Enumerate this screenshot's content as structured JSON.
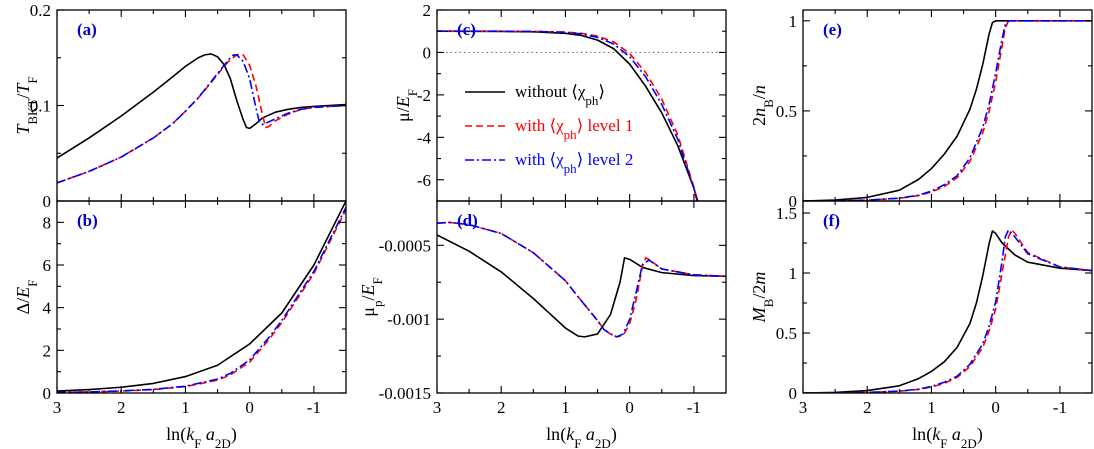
{
  "colors": {
    "black": "#000000",
    "red": "#ff0000",
    "blue": "#0000ff",
    "label": "#0000cc",
    "reference": "#777777"
  },
  "legend": [
    {
      "text": "without ⟨χ_ph⟩",
      "color": "#000000",
      "dash": "solid"
    },
    {
      "text": "with ⟨χ_ph⟩ level 1",
      "color": "#ff0000",
      "dash": "dashed"
    },
    {
      "text": "with ⟨χ_ph⟩ level 2",
      "color": "#0000ff",
      "dash": "dashdot"
    }
  ],
  "chart_data": [
    {
      "id": "a",
      "label": "(a)",
      "type": "line",
      "title": "",
      "xlabel": "ln(k_F a_2D)",
      "ylabel": "T_BKT/T_F",
      "xlim": [
        3,
        -1.5
      ],
      "ylim": [
        0,
        0.2
      ],
      "yticks": [
        0,
        0.1,
        0.2
      ],
      "yticklabels": [
        "0",
        "0.1",
        "0.2"
      ],
      "show_xlabel": false,
      "show_xticklabels": false,
      "series": [
        {
          "name": "without ⟨χ_ph⟩",
          "color": "#000000",
          "dash": "solid",
          "x": [
            3,
            2.5,
            2,
            1.5,
            1.2,
            1,
            0.8,
            0.7,
            0.6,
            0.5,
            0.4,
            0.3,
            0.2,
            0.1,
            0.05,
            0,
            -0.1,
            -0.2,
            -0.4,
            -0.6,
            -0.8,
            -1,
            -1.5
          ],
          "y": [
            0.045,
            0.066,
            0.089,
            0.114,
            0.13,
            0.141,
            0.15,
            0.153,
            0.154,
            0.151,
            0.143,
            0.128,
            0.105,
            0.085,
            0.077,
            0.076,
            0.081,
            0.087,
            0.093,
            0.096,
            0.098,
            0.099,
            0.101
          ]
        },
        {
          "name": "with ⟨χ_ph⟩ level 1",
          "color": "#ff0000",
          "dash": "dashed",
          "x": [
            3,
            2.5,
            2,
            1.5,
            1.2,
            1,
            0.8,
            0.6,
            0.4,
            0.3,
            0.2,
            0.15,
            0.1,
            0,
            -0.1,
            -0.2,
            -0.25,
            -0.3,
            -0.4,
            -0.6,
            -0.8,
            -1,
            -1.5
          ],
          "y": [
            0.019,
            0.031,
            0.046,
            0.066,
            0.081,
            0.094,
            0.108,
            0.124,
            0.141,
            0.148,
            0.153,
            0.154,
            0.153,
            0.142,
            0.12,
            0.09,
            0.077,
            0.078,
            0.084,
            0.091,
            0.096,
            0.098,
            0.1
          ]
        },
        {
          "name": "with ⟨χ_ph⟩ level 2",
          "color": "#0000ff",
          "dash": "dashdot",
          "x": [
            3,
            2.5,
            2,
            1.5,
            1.2,
            1,
            0.8,
            0.6,
            0.4,
            0.3,
            0.25,
            0.2,
            0.1,
            0,
            -0.1,
            -0.15,
            -0.2,
            -0.3,
            -0.4,
            -0.6,
            -0.8,
            -1,
            -1.5
          ],
          "y": [
            0.019,
            0.031,
            0.046,
            0.066,
            0.081,
            0.094,
            0.108,
            0.125,
            0.142,
            0.15,
            0.153,
            0.153,
            0.146,
            0.128,
            0.097,
            0.083,
            0.08,
            0.083,
            0.086,
            0.092,
            0.096,
            0.098,
            0.1
          ]
        }
      ]
    },
    {
      "id": "b",
      "label": "(b)",
      "type": "line",
      "title": "",
      "xlabel": "ln(k_F a_2D)",
      "ylabel": "Δ/E_F",
      "xlim": [
        3,
        -1.5
      ],
      "ylim": [
        0,
        9
      ],
      "yticks": [
        0,
        2,
        4,
        6,
        8
      ],
      "yticklabels": [
        "0",
        "2",
        "4",
        "6",
        "8"
      ],
      "xticks": [
        3,
        2,
        1,
        0,
        -1
      ],
      "xticklabels": [
        "3",
        "2",
        "1",
        "0",
        "-1"
      ],
      "show_xlabel": true,
      "show_xticklabels": true,
      "series": [
        {
          "name": "without ⟨χ_ph⟩",
          "color": "#000000",
          "dash": "solid",
          "x": [
            3,
            2.5,
            2,
            1.5,
            1,
            0.5,
            0,
            -0.5,
            -1,
            -1.25,
            -1.5
          ],
          "y": [
            0.09,
            0.16,
            0.27,
            0.45,
            0.77,
            1.3,
            2.3,
            3.75,
            6.0,
            7.5,
            9.0
          ]
        },
        {
          "name": "with ⟨χ_ph⟩ level 1",
          "color": "#ff0000",
          "dash": "dashed",
          "x": [
            3,
            2.5,
            2,
            1.5,
            1,
            0.5,
            0.3,
            0,
            -0.3,
            -0.5,
            -1,
            -1.25,
            -1.5
          ],
          "y": [
            0.03,
            0.05,
            0.09,
            0.16,
            0.3,
            0.6,
            0.85,
            1.45,
            2.5,
            3.3,
            5.6,
            7.1,
            8.6
          ]
        },
        {
          "name": "with ⟨χ_ph⟩ level 2",
          "color": "#0000ff",
          "dash": "dashdot",
          "x": [
            3,
            2.5,
            2,
            1.5,
            1,
            0.5,
            0.3,
            0,
            -0.3,
            -0.5,
            -1,
            -1.25,
            -1.5
          ],
          "y": [
            0.03,
            0.05,
            0.1,
            0.17,
            0.32,
            0.65,
            0.92,
            1.55,
            2.6,
            3.4,
            5.7,
            7.2,
            8.7
          ]
        }
      ]
    },
    {
      "id": "c",
      "label": "(c)",
      "type": "line",
      "title": "",
      "xlabel": "ln(k_F a_2D)",
      "ylabel": "μ/E_F",
      "xlim": [
        3,
        -1.5
      ],
      "ylim": [
        -7,
        2
      ],
      "yticks": [
        -6,
        -4,
        -2,
        0,
        2
      ],
      "yticklabels": [
        "-6",
        "-4",
        "-2",
        "0",
        "2"
      ],
      "show_xlabel": false,
      "show_xticklabels": false,
      "reference_line": {
        "y": 0
      },
      "series": [
        {
          "name": "without ⟨χ_ph⟩",
          "color": "#000000",
          "dash": "solid",
          "x": [
            3,
            2,
            1.5,
            1,
            0.75,
            0.5,
            0.25,
            0,
            -0.25,
            -0.5,
            -0.75,
            -1,
            -1.06
          ],
          "y": [
            1.0,
            0.99,
            0.97,
            0.9,
            0.8,
            0.58,
            0.18,
            -0.55,
            -1.6,
            -2.85,
            -4.4,
            -6.4,
            -7.0
          ]
        },
        {
          "name": "with ⟨χ_ph⟩ level 1",
          "color": "#ff0000",
          "dash": "dashed",
          "x": [
            3,
            2,
            1.5,
            1,
            0.75,
            0.5,
            0.25,
            0,
            -0.25,
            -0.5,
            -0.75,
            -1,
            -1.04
          ],
          "y": [
            1.0,
            1.0,
            0.99,
            0.96,
            0.9,
            0.77,
            0.5,
            -0.05,
            -0.95,
            -2.2,
            -3.9,
            -6.35,
            -7.0
          ]
        },
        {
          "name": "with ⟨χ_ph⟩ level 2",
          "color": "#0000ff",
          "dash": "dashdot",
          "x": [
            3,
            2,
            1.5,
            1,
            0.75,
            0.5,
            0.25,
            0,
            -0.25,
            -0.5,
            -0.75,
            -1,
            -1.05
          ],
          "y": [
            1.0,
            1.0,
            0.99,
            0.95,
            0.87,
            0.71,
            0.4,
            -0.2,
            -1.15,
            -2.45,
            -4.1,
            -6.4,
            -7.0
          ]
        }
      ]
    },
    {
      "id": "d",
      "label": "(d)",
      "type": "line",
      "title": "",
      "xlabel": "ln(k_F a_2D)",
      "ylabel": "μ_p/E_F",
      "xlim": [
        3,
        -1.5
      ],
      "ylim": [
        -0.0015,
        -0.0002
      ],
      "yticks": [
        -0.0015,
        -0.001,
        -0.0005
      ],
      "yticklabels": [
        "-0.0015",
        "-0.001",
        "-0.0005"
      ],
      "xticks": [
        3,
        2,
        1,
        0,
        -1
      ],
      "xticklabels": [
        "3",
        "2",
        "1",
        "0",
        "-1"
      ],
      "show_xlabel": true,
      "show_xticklabels": true,
      "series": [
        {
          "name": "without ⟨χ_ph⟩",
          "color": "#000000",
          "dash": "solid",
          "x": [
            3,
            2.5,
            2,
            1.5,
            1.2,
            1,
            0.8,
            0.7,
            0.5,
            0.3,
            0.15,
            0.08,
            0,
            -0.2,
            -0.5,
            -1,
            -1.5
          ],
          "y": [
            -0.00043,
            -0.00054,
            -0.00068,
            -0.00086,
            -0.00098,
            -0.00106,
            -0.001115,
            -0.00112,
            -0.0011,
            -0.00097,
            -0.00075,
            -0.000585,
            -0.000595,
            -0.00065,
            -0.000685,
            -0.000705,
            -0.00071
          ]
        },
        {
          "name": "with ⟨χ_ph⟩ level 1",
          "color": "#ff0000",
          "dash": "dashed",
          "x": [
            3,
            2.8,
            2.5,
            2,
            1.5,
            1,
            0.8,
            0.5,
            0.4,
            0.3,
            0.2,
            0.1,
            0,
            -0.1,
            -0.2,
            -0.25,
            -0.3,
            -0.5,
            -1,
            -1.5
          ],
          "y": [
            -0.00035,
            -0.000345,
            -0.00036,
            -0.00042,
            -0.00055,
            -0.00074,
            -0.00085,
            -0.00101,
            -0.00107,
            -0.0011,
            -0.00112,
            -0.00111,
            -0.00103,
            -0.00087,
            -0.00064,
            -0.000585,
            -0.000595,
            -0.00066,
            -0.0007,
            -0.00071
          ]
        },
        {
          "name": "with ⟨χ_ph⟩ level 2",
          "color": "#0000ff",
          "dash": "dashdot",
          "x": [
            3,
            2.8,
            2.5,
            2,
            1.5,
            1,
            0.8,
            0.5,
            0.4,
            0.3,
            0.2,
            0.1,
            0,
            -0.1,
            -0.2,
            -0.3,
            -0.5,
            -1,
            -1.5
          ],
          "y": [
            -0.00035,
            -0.000345,
            -0.00036,
            -0.00042,
            -0.00055,
            -0.00074,
            -0.00085,
            -0.00101,
            -0.00107,
            -0.0011,
            -0.00112,
            -0.0011,
            -0.001,
            -0.00082,
            -0.00063,
            -0.0006,
            -0.00066,
            -0.0007,
            -0.00071
          ]
        }
      ]
    },
    {
      "id": "e",
      "label": "(e)",
      "type": "line",
      "title": "",
      "xlabel": "ln(k_F a_2D)",
      "ylabel": "2n_B/n",
      "xlim": [
        3,
        -1.5
      ],
      "ylim": [
        0,
        1.06
      ],
      "yticks": [
        0,
        0.5,
        1
      ],
      "yticklabels": [
        "0",
        "0.5",
        "1"
      ],
      "show_xlabel": false,
      "show_xticklabels": false,
      "series": [
        {
          "name": "without ⟨χ_ph⟩",
          "color": "#000000",
          "dash": "solid",
          "x": [
            3,
            2.5,
            2,
            1.5,
            1.2,
            1,
            0.8,
            0.6,
            0.4,
            0.3,
            0.2,
            0.1,
            0.05,
            0,
            -0.5,
            -1,
            -1.5
          ],
          "y": [
            0.0,
            0.005,
            0.02,
            0.06,
            0.12,
            0.18,
            0.26,
            0.36,
            0.51,
            0.62,
            0.76,
            0.93,
            0.99,
            1.0,
            1.0,
            1.0,
            1.0
          ]
        },
        {
          "name": "with ⟨χ_ph⟩ level 1",
          "color": "#ff0000",
          "dash": "dashed",
          "x": [
            3,
            2.5,
            2,
            1.5,
            1.2,
            1,
            0.8,
            0.6,
            0.4,
            0.2,
            0.1,
            0,
            -0.1,
            -0.15,
            -0.2,
            -0.5,
            -1,
            -1.5
          ],
          "y": [
            0.0,
            0.0,
            0.005,
            0.015,
            0.03,
            0.05,
            0.08,
            0.13,
            0.22,
            0.38,
            0.5,
            0.66,
            0.86,
            0.96,
            1.0,
            1.0,
            1.0,
            1.0
          ]
        },
        {
          "name": "with ⟨χ_ph⟩ level 2",
          "color": "#0000ff",
          "dash": "dashdot",
          "x": [
            3,
            2.5,
            2,
            1.5,
            1.2,
            1,
            0.8,
            0.6,
            0.4,
            0.2,
            0.1,
            0,
            -0.1,
            -0.15,
            -0.2,
            -0.5,
            -1,
            -1.5
          ],
          "y": [
            0.0,
            0.0,
            0.005,
            0.016,
            0.032,
            0.055,
            0.09,
            0.14,
            0.24,
            0.41,
            0.54,
            0.71,
            0.9,
            0.98,
            1.0,
            1.0,
            1.0,
            1.0
          ]
        }
      ]
    },
    {
      "id": "f",
      "label": "(f)",
      "type": "line",
      "title": "",
      "xlabel": "ln(k_F a_2D)",
      "ylabel": "M_B/2m",
      "xlim": [
        3,
        -1.5
      ],
      "ylim": [
        0,
        1.6
      ],
      "yticks": [
        0,
        0.5,
        1,
        1.5
      ],
      "yticklabels": [
        "0",
        "0.5",
        "1",
        "1.5"
      ],
      "xticks": [
        3,
        2,
        1,
        0,
        -1
      ],
      "xticklabels": [
        "3",
        "2",
        "1",
        "0",
        "-1"
      ],
      "show_xlabel": true,
      "show_xticklabels": true,
      "series": [
        {
          "name": "without ⟨χ_ph⟩",
          "color": "#000000",
          "dash": "solid",
          "x": [
            3,
            2.5,
            2,
            1.5,
            1.2,
            1,
            0.8,
            0.6,
            0.4,
            0.3,
            0.2,
            0.1,
            0.05,
            0,
            -0.1,
            -0.3,
            -0.5,
            -1,
            -1.5
          ],
          "y": [
            0.0,
            0.005,
            0.02,
            0.06,
            0.12,
            0.18,
            0.26,
            0.38,
            0.58,
            0.75,
            0.98,
            1.25,
            1.35,
            1.33,
            1.25,
            1.15,
            1.09,
            1.04,
            1.02
          ]
        },
        {
          "name": "with ⟨χ_ph⟩ level 1",
          "color": "#ff0000",
          "dash": "dashed",
          "x": [
            3,
            2.5,
            2,
            1.5,
            1.2,
            1,
            0.8,
            0.6,
            0.4,
            0.2,
            0.1,
            0,
            -0.1,
            -0.2,
            -0.25,
            -0.3,
            -0.5,
            -1,
            -1.5
          ],
          "y": [
            0.0,
            0.0,
            0.005,
            0.015,
            0.03,
            0.05,
            0.08,
            0.13,
            0.22,
            0.38,
            0.52,
            0.7,
            1.0,
            1.3,
            1.36,
            1.33,
            1.17,
            1.05,
            1.02
          ]
        },
        {
          "name": "with ⟨χ_ph⟩ level 2",
          "color": "#0000ff",
          "dash": "dashdot",
          "x": [
            3,
            2.5,
            2,
            1.5,
            1.2,
            1,
            0.8,
            0.6,
            0.4,
            0.2,
            0.1,
            0,
            -0.1,
            -0.15,
            -0.2,
            -0.3,
            -0.5,
            -1,
            -1.5
          ],
          "y": [
            0.0,
            0.0,
            0.005,
            0.016,
            0.032,
            0.055,
            0.09,
            0.14,
            0.24,
            0.41,
            0.56,
            0.76,
            1.1,
            1.3,
            1.36,
            1.3,
            1.16,
            1.05,
            1.02
          ]
        }
      ]
    }
  ]
}
